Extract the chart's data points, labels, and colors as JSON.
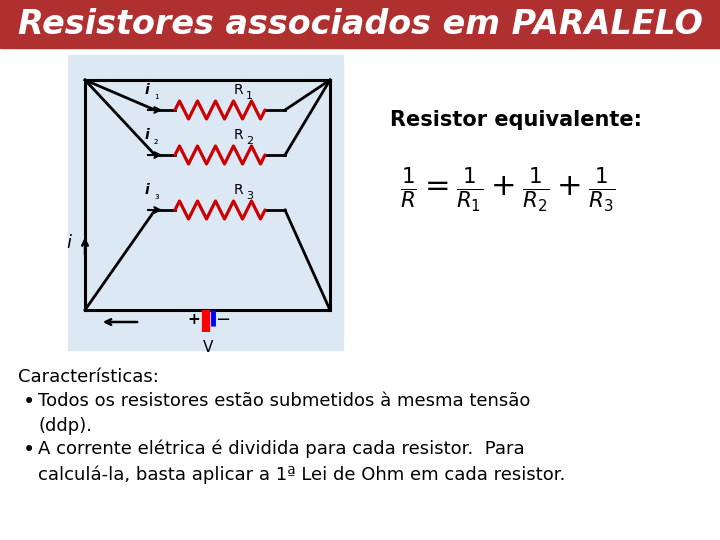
{
  "title": "Resistores associados em PARALELO",
  "title_bg": "#b03030",
  "title_color": "#ffffff",
  "title_fontsize": 24,
  "bg_color": "#ffffff",
  "circuit_bg": "#dce9f5",
  "resistor_equiv_label": "Resistor equivalente:",
  "char_header": "Características:",
  "bullet1_line1": "Todos os resistores estão submetidos à mesma tensão",
  "bullet1_line2": "(ddp).",
  "bullet2_line1": "A corrente elétrica é dividida para cada resistor.  Para",
  "bullet2_line2": "calculá-la, basta aplicar a 1ª Lei de Ohm em cada resistor.",
  "text_fontsize": 13,
  "label_fontsize": 11,
  "formula": "$\\frac{1}{R} = \\frac{1}{R_1} + \\frac{1}{R_2} + \\frac{1}{R_3}$"
}
